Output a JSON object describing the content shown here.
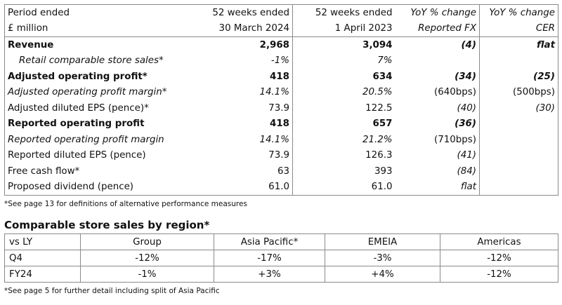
{
  "performance_table": {
    "header_row1": [
      "Period ended",
      "52 weeks ended",
      "52 weeks ended",
      "YoY % change",
      "YoY % change"
    ],
    "header_row2": [
      "£ million",
      "30 March 2024",
      "1 April 2023",
      "Reported FX",
      "CER"
    ],
    "rows": [
      {
        "label": "Revenue",
        "fy24": "2,968",
        "fy23": "3,094",
        "reported": "(4)",
        "cer": "flat"
      },
      {
        "label": "Retail comparable store sales*",
        "fy24": "-1%",
        "fy23": "7%",
        "reported": "",
        "cer": ""
      },
      {
        "label": "Adjusted operating profit*",
        "fy24": "418",
        "fy23": "634",
        "reported": "(34)",
        "cer": "(25)"
      },
      {
        "label": "Adjusted operating profit margin*",
        "fy24": "14.1%",
        "fy23": "20.5%",
        "reported": "(640bps)",
        "cer": "(500bps)"
      },
      {
        "label": "Adjusted diluted EPS (pence)*",
        "fy24": "73.9",
        "fy23": "122.5",
        "reported": "(40)",
        "cer": "(30)"
      },
      {
        "label": "Reported operating profit",
        "fy24": "418",
        "fy23": "657",
        "reported": "(36)",
        "cer": ""
      },
      {
        "label": "Reported operating profit margin",
        "fy24": "14.1%",
        "fy23": "21.2%",
        "reported": "(710bps)",
        "cer": ""
      },
      {
        "label": "Reported diluted EPS (pence)",
        "fy24": "73.9",
        "fy23": "126.3",
        "reported": "(41)",
        "cer": ""
      },
      {
        "label": "Free cash flow*",
        "fy24": "63",
        "fy23": "393",
        "reported": "(84)",
        "cer": ""
      },
      {
        "label": "Proposed dividend (pence)",
        "fy24": "61.0",
        "fy23": "61.0",
        "reported": "flat",
        "cer": ""
      }
    ],
    "footnote": "*See page 13 for definitions of alternative performance measures"
  },
  "region_section": {
    "title": "Comparable store sales by region*",
    "headers": [
      "vs LY",
      "Group",
      "Asia Pacific*",
      "EMEIA",
      "Americas"
    ],
    "rows": [
      [
        "Q4",
        "-12%",
        "-17%",
        "-3%",
        "-12%"
      ],
      [
        "FY24",
        "-1%",
        "+3%",
        "+4%",
        "-12%"
      ]
    ],
    "footnote": "*See page 5 for further detail including split of Asia Pacific"
  }
}
